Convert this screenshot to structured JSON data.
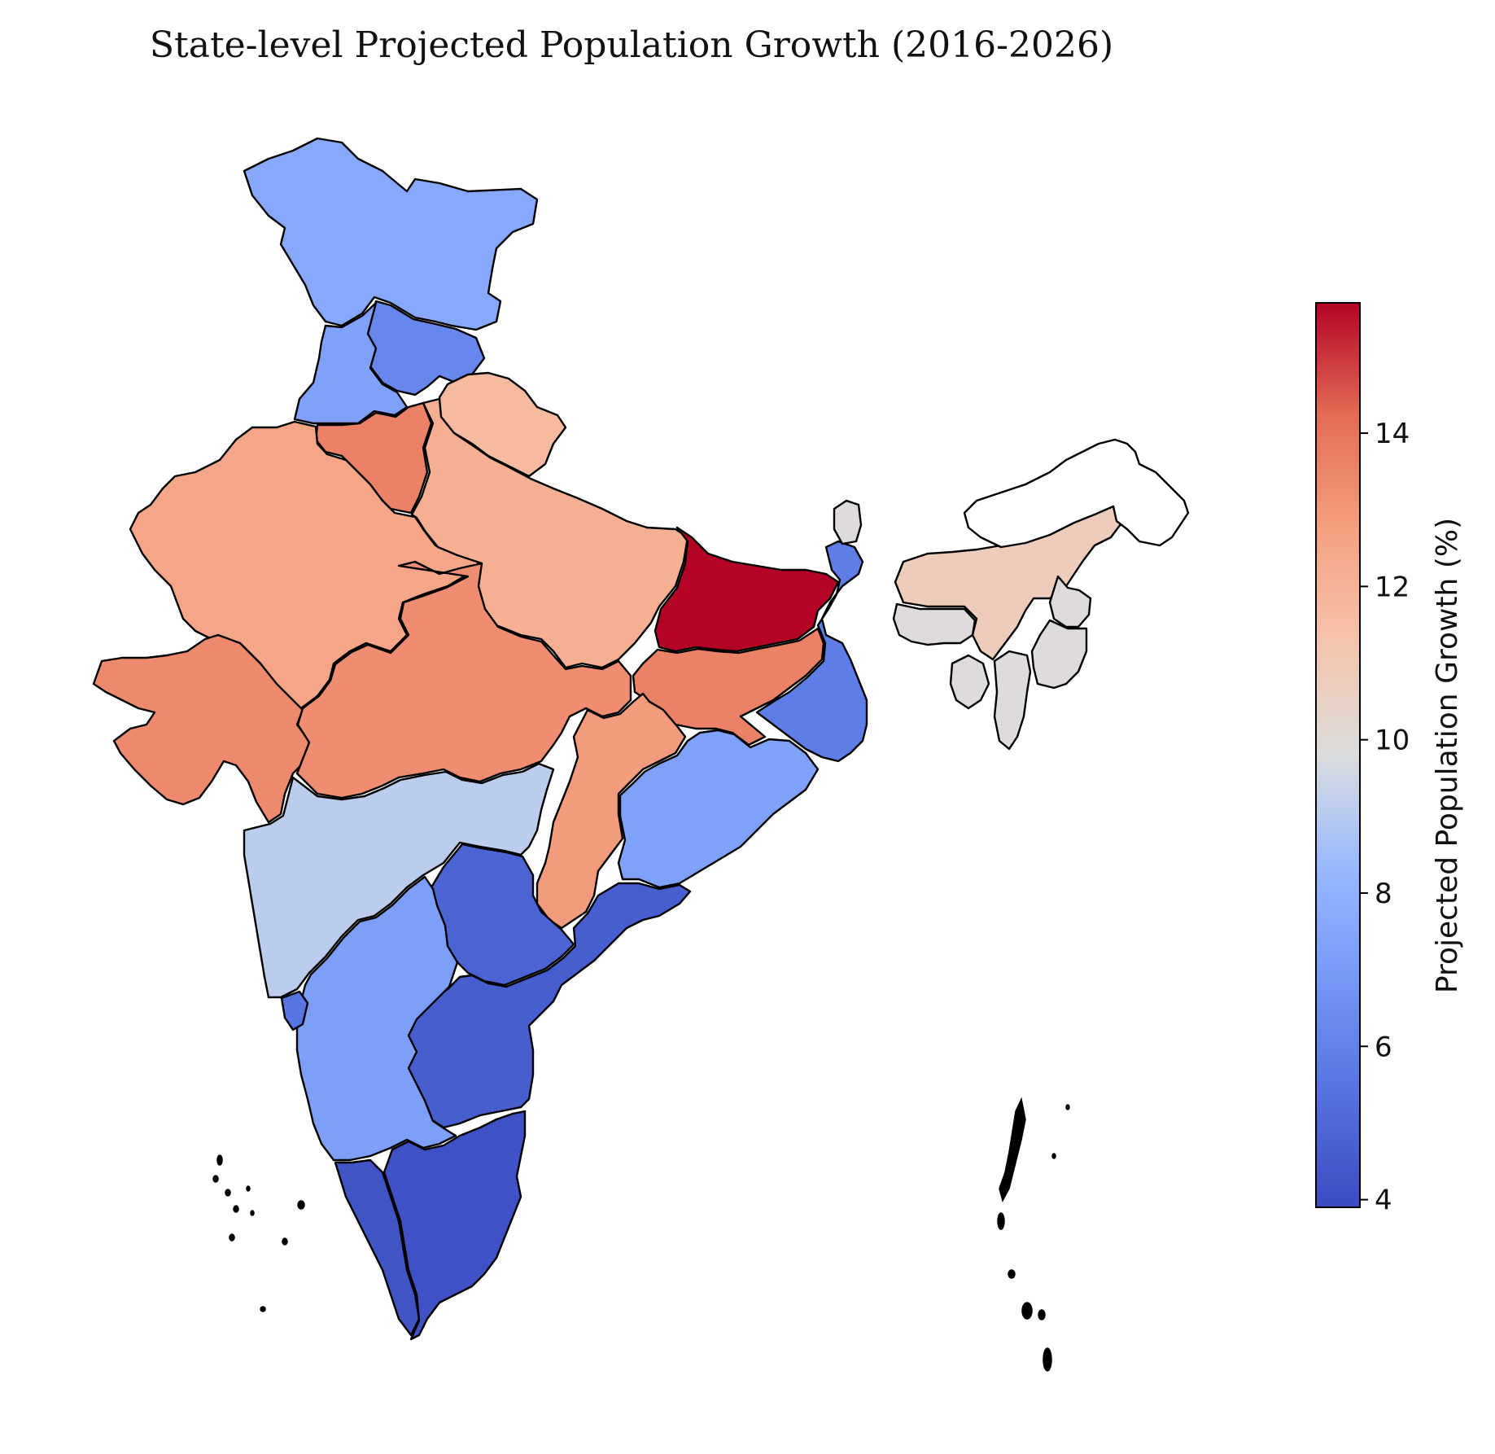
{
  "title": "State-level Projected Population Growth (2016-2026)",
  "colorbar": {
    "label": "Projected Population Growth (%)",
    "min": 3.9,
    "max": 15.7,
    "ticks": [
      "4",
      "6",
      "8",
      "10",
      "12",
      "14"
    ],
    "tick_values": [
      4,
      6,
      8,
      10,
      12,
      14
    ],
    "colormap": "coolwarm"
  },
  "regions": [
    {
      "id": "jammu-kashmir",
      "value": 7.6
    },
    {
      "id": "himachal-pradesh",
      "value": 6.2
    },
    {
      "id": "punjab",
      "value": 7.3
    },
    {
      "id": "uttarakhand",
      "value": 11.7
    },
    {
      "id": "haryana",
      "value": 13.6
    },
    {
      "id": "rajasthan",
      "value": 12.5
    },
    {
      "id": "uttar-pradesh",
      "value": 12.1
    },
    {
      "id": "bihar",
      "value": 15.7
    },
    {
      "id": "gujarat",
      "value": 13.4
    },
    {
      "id": "madhya-pradesh",
      "value": 13.3
    },
    {
      "id": "jharkhand",
      "value": 13.6
    },
    {
      "id": "chhattisgarh",
      "value": 12.9
    },
    {
      "id": "west-bengal",
      "value": 5.8
    },
    {
      "id": "odisha",
      "value": 7.3
    },
    {
      "id": "maharashtra",
      "value": 9.1
    },
    {
      "id": "telangana",
      "value": 4.8
    },
    {
      "id": "andhra-pradesh",
      "value": 4.6
    },
    {
      "id": "karnataka",
      "value": 7.2
    },
    {
      "id": "goa",
      "value": 5.5
    },
    {
      "id": "kerala",
      "value": 4.2
    },
    {
      "id": "tamil-nadu",
      "value": 4.1
    },
    {
      "id": "sikkim",
      "value": 9.9
    },
    {
      "id": "assam",
      "value": 10.8
    },
    {
      "id": "meghalaya",
      "value": 9.9
    },
    {
      "id": "nagaland",
      "value": 9.9
    },
    {
      "id": "manipur",
      "value": 9.9
    },
    {
      "id": "mizoram",
      "value": 9.9
    },
    {
      "id": "tripura",
      "value": 9.9
    },
    {
      "id": "arunachal-pradesh",
      "value": null
    }
  ],
  "colors": {
    "no_data": "#ffffff",
    "border": "#000000"
  }
}
